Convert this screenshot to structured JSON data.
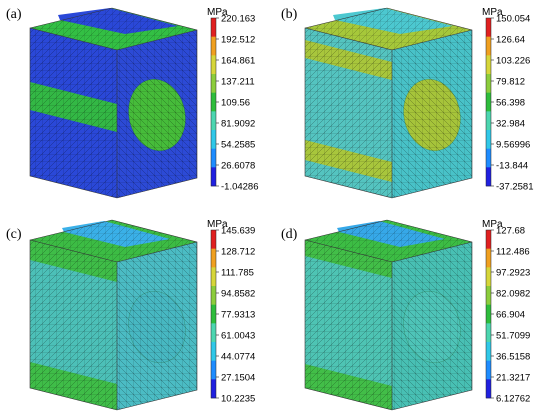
{
  "figure": {
    "colorbar_colors": [
      "#2020e0",
      "#1e8cff",
      "#30c8e8",
      "#4cd6b0",
      "#2ebd3c",
      "#8ccd3c",
      "#d6d63a",
      "#f0a020",
      "#e02020"
    ],
    "panels": [
      {
        "label": "(a)",
        "unit": "MPa",
        "ticks": [
          "220.163",
          "192.512",
          "164.861",
          "137.211",
          "109.56",
          "81.9092",
          "54.2585",
          "26.6078",
          "-1.04286"
        ],
        "colors": {
          "top": "#33bf44",
          "top_band": "#2a48d8",
          "left": "#2a48d8",
          "left_band": "#33b845",
          "right": "#2c4ad6",
          "right_ellipse": "#46bc3a"
        }
      },
      {
        "label": "(b)",
        "unit": "MPa",
        "ticks": [
          "150.054",
          "126.64",
          "103.226",
          "79.812",
          "56.398",
          "32.984",
          "9.56996",
          "-13.844",
          "-37.2581"
        ],
        "colors": {
          "top": "#a6c83a",
          "top_band": "#4cc8d0",
          "left": "#54c4c0",
          "left_band": "#a8c63c",
          "right": "#48c2c8",
          "right_ellipse": "#a6c43a"
        }
      },
      {
        "label": "(c)",
        "unit": "MPa",
        "ticks": [
          "145.639",
          "128.712",
          "111.785",
          "94.8582",
          "77.9313",
          "61.0043",
          "44.0774",
          "27.1504",
          "10.2235"
        ],
        "colors": {
          "top": "#3cbc44",
          "top_band": "#3ab0e8",
          "left": "#4cc0b8",
          "left_band": "#3fbd48",
          "right": "#4bbcc4",
          "right_ellipse": "#47b8c2"
        }
      },
      {
        "label": "(d)",
        "unit": "MPa",
        "ticks": [
          "127.68",
          "112.486",
          "97.2923",
          "82.0982",
          "66.904",
          "51.7099",
          "36.5158",
          "21.3217",
          "6.12762"
        ],
        "colors": {
          "top": "#3cbd44",
          "top_band": "#36a8e8",
          "left": "#4ec4b4",
          "left_band": "#42be48",
          "right": "#48c0b4",
          "right_ellipse": "#4ec4b8"
        }
      }
    ]
  }
}
